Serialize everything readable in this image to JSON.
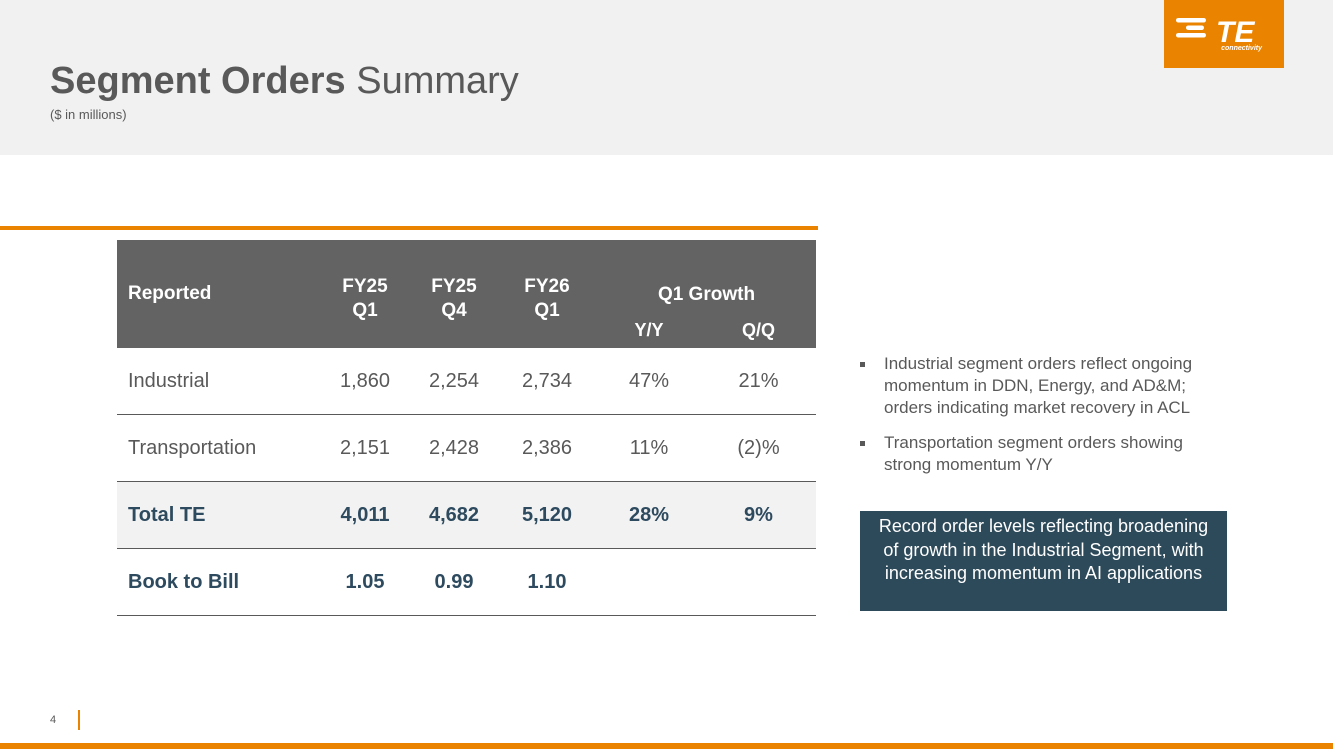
{
  "header": {
    "title_bold": "Segment Orders",
    "title_regular": "Summary",
    "subtitle": "($ in millions)"
  },
  "logo": {
    "text": "TE",
    "tagline": "connectivity",
    "icon": "te-logo-icon",
    "color": "#e98300"
  },
  "table": {
    "header": {
      "label": "Reported",
      "periods": [
        {
          "year": "FY25",
          "quarter": "Q1"
        },
        {
          "year": "FY25",
          "quarter": "Q4"
        },
        {
          "year": "FY26",
          "quarter": "Q1"
        }
      ],
      "growth_group": "Q1 Growth",
      "growth_cols": [
        "Y/Y",
        "Q/Q"
      ]
    },
    "rows": [
      {
        "label": "Industrial",
        "values": [
          "1,860",
          "2,254",
          "2,734",
          "47%",
          "21%"
        ]
      },
      {
        "label": "Transportation",
        "values": [
          "2,151",
          "2,428",
          "2,386",
          "11%",
          "(2)%"
        ]
      },
      {
        "label": "Total TE",
        "values": [
          "4,011",
          "4,682",
          "5,120",
          "28%",
          "9%"
        ]
      },
      {
        "label": "Book to Bill",
        "values": [
          "1.05",
          "0.99",
          "1.10",
          "",
          ""
        ]
      }
    ]
  },
  "bullets": [
    "Industrial segment orders reflect ongoing momentum in DDN, Energy, and AD&M; orders indicating market recovery in ACL",
    "Transportation segment orders showing strong momentum Y/Y"
  ],
  "callout": "Record order levels reflecting broadening of growth in the Industrial Segment, with increasing momentum in AI applications",
  "page_number": "4",
  "colors": {
    "accent": "#e98300",
    "header_bg": "#636363",
    "dark_teal": "#2d4a5a",
    "text_gray": "#595959"
  }
}
